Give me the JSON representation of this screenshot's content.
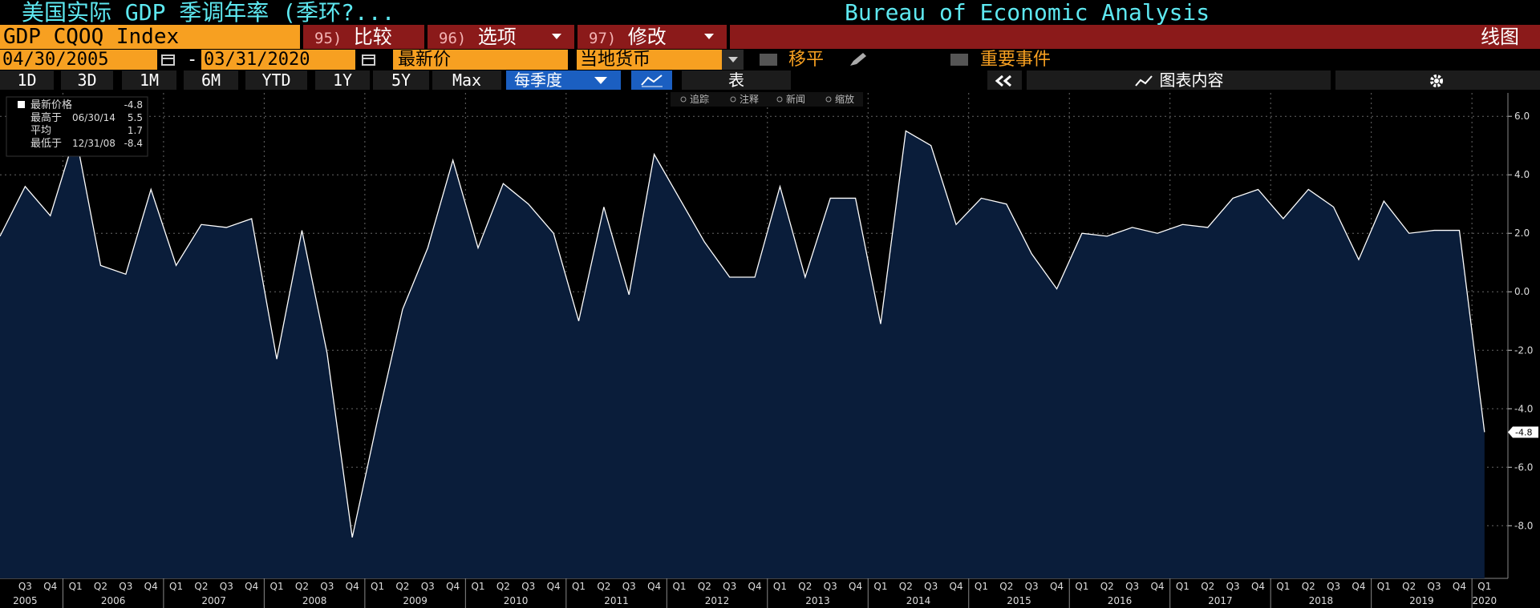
{
  "header": {
    "title": "美国实际 GDP 季调年率 (季环?...",
    "source": "Bureau of Economic Analysis"
  },
  "toolbar": {
    "ticker": "GDP CQOQ Index",
    "menus": [
      {
        "num": "95)",
        "label": "比较"
      },
      {
        "num": "96)",
        "label": "选项"
      },
      {
        "num": "97)",
        "label": "修改"
      }
    ],
    "view": "线图",
    "start_date": "04/30/2005",
    "date_sep": "-",
    "end_date": "03/31/2020",
    "price_field": "最新价",
    "currency": "当地货币",
    "moving_avg": "移平",
    "events": "重要事件"
  },
  "periods": [
    "1D",
    "3D",
    "1M",
    "6M",
    "YTD",
    "1Y",
    "5Y",
    "Max"
  ],
  "frequency": "每季度",
  "table_btn": "表",
  "chart_content": "图表内容",
  "chart_tools": [
    "追踪",
    "注释",
    "新闻",
    "缩放"
  ],
  "chart_data": {
    "type": "area",
    "categories": [
      null,
      "Q3",
      "Q4",
      "Q1",
      "Q2",
      "Q3",
      "Q4",
      "Q1",
      "Q2",
      "Q3",
      "Q4",
      "Q1",
      "Q2",
      "Q3",
      "Q4",
      "Q1",
      "Q2",
      "Q3",
      "Q4",
      "Q1",
      "Q2",
      "Q3",
      "Q4",
      "Q1",
      "Q2",
      "Q3",
      "Q4",
      "Q1",
      "Q2",
      "Q3",
      "Q4",
      "Q1",
      "Q2",
      "Q3",
      "Q4",
      "Q1",
      "Q2",
      "Q3",
      "Q4",
      "Q1",
      "Q2",
      "Q3",
      "Q4",
      "Q1",
      "Q2",
      "Q3",
      "Q4",
      "Q1",
      "Q2",
      "Q3",
      "Q4",
      "Q1",
      "Q2",
      "Q3",
      "Q4",
      "Q1",
      "Q2",
      "Q3",
      "Q4",
      "Q1"
    ],
    "x_years": [
      "2005",
      "2006",
      "2007",
      "2008",
      "2009",
      "2010",
      "2011",
      "2012",
      "2013",
      "2014",
      "2015",
      "2016",
      "2017",
      "2018",
      "2019",
      "2020"
    ],
    "series": [
      {
        "color": "#ffffff",
        "fill": "#0a1d3a",
        "values": [
          1.9,
          3.6,
          2.6,
          5.4,
          0.9,
          0.6,
          3.5,
          0.9,
          2.3,
          2.2,
          2.5,
          -2.3,
          2.1,
          -2.1,
          -8.4,
          -4.4,
          -0.6,
          1.5,
          4.5,
          1.5,
          3.7,
          3.0,
          2.0,
          -1.0,
          2.9,
          -0.1,
          4.7,
          3.2,
          1.7,
          0.5,
          0.5,
          3.6,
          0.5,
          3.2,
          3.2,
          -1.1,
          5.5,
          5.0,
          2.3,
          3.2,
          3.0,
          1.3,
          0.1,
          2.0,
          1.9,
          2.2,
          2.0,
          2.3,
          2.2,
          3.2,
          3.5,
          2.5,
          3.5,
          2.9,
          1.1,
          3.1,
          2.0,
          2.1,
          2.1,
          -4.8
        ]
      }
    ],
    "ylim": [
      -9.8,
      6.8
    ],
    "yticks": [
      {
        "value": -8,
        "label": "-8.0"
      },
      {
        "value": -6,
        "label": "-6.0"
      },
      {
        "value": -4,
        "label": "-4.0"
      },
      {
        "value": -2,
        "label": "-2.0"
      },
      {
        "value": 0,
        "label": "0.0"
      },
      {
        "value": 2,
        "label": "2.0"
      },
      {
        "value": 4,
        "label": "4.0"
      },
      {
        "value": 6,
        "label": "6.0"
      }
    ],
    "grid": true,
    "legend_stats": [
      {
        "label": "最新价格",
        "value": -4.8
      },
      {
        "label": "最高于",
        "date": "06/30/14",
        "value": 5.5
      },
      {
        "label": "平均",
        "value": 1.7
      },
      {
        "label": "最低于",
        "date": "12/31/08",
        "value": -8.4
      }
    ]
  }
}
